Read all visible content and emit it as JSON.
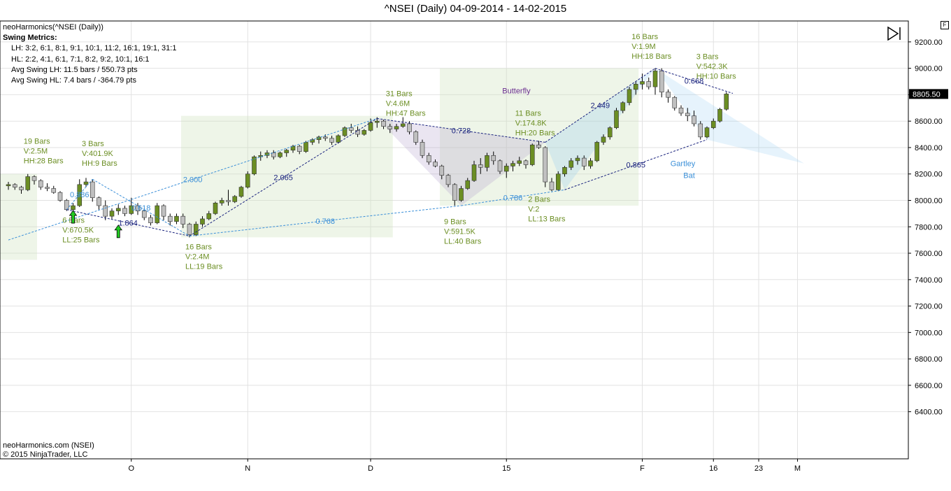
{
  "title": "^NSEI (Daily)  04-09-2014 - 14-02-2015",
  "f_badge": "F",
  "info": {
    "instrument": "neoHarmonics(^NSEI (Daily))",
    "heading": "Swing Metrics:",
    "lh": "LH: 3:2, 6:1, 8:1, 9:1, 10:1, 11:2, 16:1, 19:1, 31:1",
    "hl": "HL: 2:2, 4:1, 6:1, 7:1, 8:2, 9:2, 10:1, 16:1",
    "avg_lh": "Avg Swing LH: 11.5 bars / 550.73 pts",
    "avg_hl": "Avg Swing HL: 7.4 bars / -364.79 pts"
  },
  "footer": {
    "source": "neoHarmonics.com (NSEI)",
    "copyright": "© 2015 NinjaTrader, LLC"
  },
  "chart_data": {
    "type": "candlestick",
    "title": "^NSEI (Daily)  04-09-2014 - 14-02-2015",
    "ylim": [
      6300,
      9300
    ],
    "yticks": [
      6400,
      6600,
      6800,
      7000,
      7200,
      7400,
      7600,
      7800,
      8000,
      8200,
      8400,
      8600,
      8800,
      9000,
      9200
    ],
    "x_tick_labels": [
      {
        "label": "O",
        "bar": 19
      },
      {
        "label": "N",
        "bar": 37
      },
      {
        "label": "D",
        "bar": 56
      },
      {
        "label": "15",
        "bar": 77
      },
      {
        "label": "F",
        "bar": 98
      },
      {
        "label": "16",
        "bar": 109
      },
      {
        "label": "23",
        "bar": 116
      },
      {
        "label": "M",
        "bar": 122
      }
    ],
    "last_price_label": "8805.50",
    "last_price": 8805.5,
    "candles": [
      [
        8110,
        8140,
        8080,
        8120
      ],
      [
        8120,
        8130,
        8080,
        8100
      ],
      [
        8100,
        8110,
        8050,
        8080
      ],
      [
        8080,
        8200,
        8070,
        8180
      ],
      [
        8180,
        8190,
        8120,
        8150
      ],
      [
        8150,
        8160,
        8080,
        8100
      ],
      [
        8100,
        8130,
        8070,
        8090
      ],
      [
        8090,
        8110,
        8050,
        8060
      ],
      [
        8060,
        8070,
        7990,
        8000
      ],
      [
        8000,
        8010,
        7920,
        7930
      ],
      [
        7930,
        7980,
        7920,
        7960
      ],
      [
        7960,
        8160,
        7950,
        8120
      ],
      [
        8120,
        8170,
        8100,
        8140
      ],
      [
        8140,
        8160,
        7990,
        8020
      ],
      [
        8020,
        8030,
        7930,
        7960
      ],
      [
        7960,
        8000,
        7850,
        7880
      ],
      [
        7880,
        7940,
        7860,
        7920
      ],
      [
        7920,
        7970,
        7890,
        7940
      ],
      [
        7940,
        7960,
        7880,
        7900
      ],
      [
        7900,
        8020,
        7890,
        7960
      ],
      [
        7960,
        7980,
        7890,
        7920
      ],
      [
        7920,
        7940,
        7850,
        7870
      ],
      [
        7870,
        7890,
        7810,
        7830
      ],
      [
        7830,
        7980,
        7820,
        7960
      ],
      [
        7960,
        7970,
        7850,
        7880
      ],
      [
        7880,
        7900,
        7810,
        7840
      ],
      [
        7840,
        7900,
        7820,
        7880
      ],
      [
        7880,
        7900,
        7790,
        7820
      ],
      [
        7820,
        7830,
        7720,
        7740
      ],
      [
        7740,
        7840,
        7730,
        7820
      ],
      [
        7820,
        7880,
        7800,
        7860
      ],
      [
        7860,
        7920,
        7850,
        7900
      ],
      [
        7900,
        7990,
        7890,
        7980
      ],
      [
        7980,
        8020,
        7960,
        8000
      ],
      [
        8000,
        8080,
        7960,
        7990
      ],
      [
        7990,
        8040,
        7980,
        8030
      ],
      [
        8030,
        8110,
        8020,
        8100
      ],
      [
        8100,
        8220,
        8090,
        8200
      ],
      [
        8200,
        8340,
        8190,
        8330
      ],
      [
        8330,
        8370,
        8300,
        8340
      ],
      [
        8340,
        8380,
        8320,
        8360
      ],
      [
        8360,
        8380,
        8310,
        8330
      ],
      [
        8330,
        8370,
        8320,
        8360
      ],
      [
        8360,
        8390,
        8330,
        8380
      ],
      [
        8380,
        8420,
        8360,
        8410
      ],
      [
        8410,
        8420,
        8350,
        8370
      ],
      [
        8370,
        8450,
        8360,
        8440
      ],
      [
        8440,
        8470,
        8420,
        8460
      ],
      [
        8460,
        8490,
        8430,
        8480
      ],
      [
        8480,
        8500,
        8450,
        8470
      ],
      [
        8470,
        8490,
        8420,
        8440
      ],
      [
        8440,
        8500,
        8430,
        8490
      ],
      [
        8490,
        8560,
        8480,
        8550
      ],
      [
        8550,
        8580,
        8510,
        8530
      ],
      [
        8530,
        8560,
        8480,
        8500
      ],
      [
        8500,
        8540,
        8490,
        8530
      ],
      [
        8530,
        8620,
        8520,
        8590
      ],
      [
        8590,
        8630,
        8550,
        8600
      ],
      [
        8600,
        8610,
        8540,
        8560
      ],
      [
        8560,
        8580,
        8510,
        8540
      ],
      [
        8540,
        8580,
        8520,
        8560
      ],
      [
        8560,
        8630,
        8550,
        8580
      ],
      [
        8580,
        8600,
        8500,
        8520
      ],
      [
        8520,
        8530,
        8420,
        8440
      ],
      [
        8440,
        8460,
        8320,
        8340
      ],
      [
        8340,
        8360,
        8270,
        8290
      ],
      [
        8290,
        8310,
        8250,
        8260
      ],
      [
        8260,
        8270,
        8160,
        8190
      ],
      [
        8190,
        8200,
        8100,
        8120
      ],
      [
        8120,
        8130,
        7960,
        8000
      ],
      [
        8000,
        8110,
        7990,
        8090
      ],
      [
        8090,
        8170,
        8080,
        8150
      ],
      [
        8150,
        8300,
        8140,
        8270
      ],
      [
        8270,
        8320,
        8200,
        8250
      ],
      [
        8250,
        8360,
        8220,
        8340
      ],
      [
        8340,
        8370,
        8270,
        8300
      ],
      [
        8300,
        8310,
        8200,
        8220
      ],
      [
        8220,
        8280,
        8170,
        8260
      ],
      [
        8260,
        8300,
        8220,
        8280
      ],
      [
        8280,
        8330,
        8260,
        8300
      ],
      [
        8300,
        8310,
        8240,
        8270
      ],
      [
        8270,
        8430,
        8260,
        8420
      ],
      [
        8420,
        8450,
        8390,
        8400
      ],
      [
        8400,
        8410,
        8100,
        8140
      ],
      [
        8140,
        8170,
        8070,
        8080
      ],
      [
        8080,
        8220,
        8070,
        8200
      ],
      [
        8200,
        8260,
        8180,
        8250
      ],
      [
        8250,
        8320,
        8230,
        8300
      ],
      [
        8300,
        8340,
        8270,
        8320
      ],
      [
        8320,
        8340,
        8230,
        8260
      ],
      [
        8260,
        8320,
        8240,
        8300
      ],
      [
        8300,
        8450,
        8290,
        8440
      ],
      [
        8440,
        8500,
        8420,
        8480
      ],
      [
        8480,
        8560,
        8460,
        8550
      ],
      [
        8550,
        8700,
        8540,
        8680
      ],
      [
        8680,
        8750,
        8660,
        8740
      ],
      [
        8740,
        8860,
        8720,
        8840
      ],
      [
        8840,
        8900,
        8800,
        8880
      ],
      [
        8880,
        8960,
        8840,
        8900
      ],
      [
        8900,
        8930,
        8840,
        8860
      ],
      [
        8860,
        9000,
        8800,
        8980
      ],
      [
        8980,
        9000,
        8780,
        8820
      ],
      [
        8820,
        8840,
        8740,
        8780
      ],
      [
        8780,
        8790,
        8680,
        8700
      ],
      [
        8700,
        8720,
        8640,
        8660
      ],
      [
        8660,
        8700,
        8600,
        8640
      ],
      [
        8640,
        8680,
        8560,
        8580
      ],
      [
        8580,
        8600,
        8460,
        8480
      ],
      [
        8480,
        8560,
        8470,
        8550
      ],
      [
        8550,
        8620,
        8540,
        8600
      ],
      [
        8600,
        8700,
        8590,
        8690
      ],
      [
        8690,
        8820,
        8680,
        8805.5
      ]
    ],
    "harmonic_lines": [
      {
        "from": [
          9,
          7930
        ],
        "to": [
          13,
          8160
        ],
        "label": "0.886",
        "style": "light"
      },
      {
        "from": [
          9,
          7930
        ],
        "to": [
          28,
          7730
        ],
        "label": "1.864",
        "style": "dark"
      },
      {
        "from": [
          13,
          8160
        ],
        "to": [
          28,
          7730
        ],
        "label": "0.618",
        "style": "light"
      },
      {
        "from": [
          28,
          7730
        ],
        "to": [
          57,
          8620
        ],
        "label": "2.065",
        "style": "dark"
      },
      {
        "from": [
          0,
          7700
        ],
        "to": [
          57,
          8620
        ],
        "label": "2.000",
        "style": "light"
      },
      {
        "from": [
          28,
          7730
        ],
        "to": [
          70,
          7960
        ],
        "label": "0.768",
        "style": "light"
      },
      {
        "from": [
          57,
          8620
        ],
        "to": [
          83,
          8440
        ],
        "label": "0.728",
        "style": "dark"
      },
      {
        "from": [
          70,
          7960
        ],
        "to": [
          86,
          8080
        ],
        "label": "0.786",
        "style": "light"
      },
      {
        "from": [
          83,
          8440
        ],
        "to": [
          100,
          9000
        ],
        "label": "2.449",
        "style": "dark"
      },
      {
        "from": [
          86,
          8080
        ],
        "to": [
          108,
          8460
        ],
        "label": "0.865",
        "style": "dark"
      },
      {
        "from": [
          100,
          9000
        ],
        "to": [
          112,
          8810
        ],
        "label": "0.668",
        "style": "dark"
      }
    ],
    "annotations": [
      {
        "bar": 3,
        "price": 8430,
        "lines": [
          "19 Bars",
          "V:2.5M",
          "HH:28 Bars"
        ],
        "color": "#6b8e23"
      },
      {
        "bar": 12,
        "price": 8410,
        "lines": [
          "3 Bars",
          "V:401.9K",
          "HH:9 Bars"
        ],
        "color": "#6b8e23"
      },
      {
        "bar": 9,
        "price": 7830,
        "lines": [
          "6 Bars",
          "V:670.5K",
          "LL:25 Bars"
        ],
        "color": "#6b8e23"
      },
      {
        "bar": 28,
        "price": 7630,
        "lines": [
          "16 Bars",
          "V:2.4M",
          "LL:19 Bars"
        ],
        "color": "#6b8e23"
      },
      {
        "bar": 59,
        "price": 8790,
        "lines": [
          "31 Bars",
          "V:4.6M",
          "HH:47 Bars"
        ],
        "color": "#6b8e23"
      },
      {
        "bar": 68,
        "price": 7820,
        "lines": [
          "9 Bars",
          "V:591.5K",
          "LL:40 Bars"
        ],
        "color": "#6b8e23"
      },
      {
        "bar": 79,
        "price": 8640,
        "lines": [
          "11 Bars",
          "V:174.8K",
          "HH:20 Bars"
        ],
        "color": "#6b8e23"
      },
      {
        "bar": 81,
        "price": 7990,
        "lines": [
          "2 Bars",
          "V:2",
          "LL:13 Bars"
        ],
        "color": "#6b8e23"
      },
      {
        "bar": 97,
        "price": 9220,
        "lines": [
          "16 Bars",
          "V:1.9M",
          "HH:18 Bars"
        ],
        "color": "#6b8e23"
      },
      {
        "bar": 107,
        "price": 9070,
        "lines": [
          "3 Bars",
          "V:542.3K",
          "HH:10 Bars"
        ],
        "color": "#6b8e23"
      },
      {
        "bar": 77,
        "price": 8810,
        "lines": [
          "Butterfly"
        ],
        "color": "#6a2d8f"
      },
      {
        "bar": 103,
        "price": 8260,
        "lines": [
          "Gartley"
        ],
        "color": "#3a8fd8"
      },
      {
        "bar": 105,
        "price": 8170,
        "lines": [
          "Bat"
        ],
        "color": "#3a8fd8"
      }
    ],
    "arrows": [
      {
        "bar": 10,
        "price": 7870,
        "direction": "up"
      },
      {
        "bar": 17,
        "price": 7760,
        "direction": "up"
      }
    ],
    "zones": [
      {
        "from_bar": 0,
        "to_bar": 4,
        "low": 7550,
        "high": 8200
      },
      {
        "from_bar": 28,
        "to_bar": 59,
        "low": 7720,
        "high": 8640
      },
      {
        "from_bar": 68,
        "to_bar": 97,
        "low": 7960,
        "high": 9000
      }
    ],
    "patterns": [
      {
        "name": "butterfly",
        "points": [
          [
            57,
            8620
          ],
          [
            70,
            7960
          ],
          [
            83,
            8440
          ]
        ],
        "color": "rgba(170,150,200,0.25)"
      },
      {
        "name": "gartley",
        "points": [
          [
            83,
            8440
          ],
          [
            100,
            9000
          ],
          [
            86,
            8080
          ]
        ],
        "color": "rgba(140,200,240,0.25)"
      },
      {
        "name": "bat-projection",
        "points": [
          [
            100,
            9000
          ],
          [
            123,
            8280
          ],
          [
            108,
            8460
          ]
        ],
        "color": "rgba(140,200,240,0.22)"
      }
    ]
  }
}
